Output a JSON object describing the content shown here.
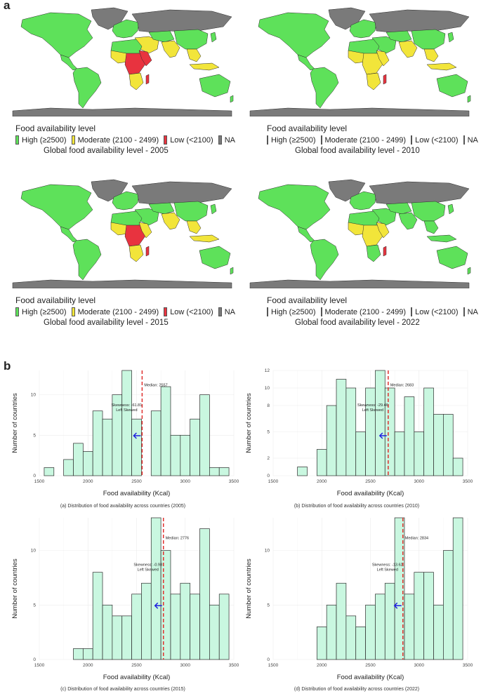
{
  "panel_a_label": "a",
  "panel_b_label": "b",
  "colors": {
    "high": "#5EE15A",
    "moderate": "#F2E53A",
    "low": "#E8333F",
    "na": "#7A7A7A",
    "ocean": "#ffffff",
    "bar_fill": "#C9F7E0",
    "bar_stroke": "#2b2b2b",
    "median_line": "#E0302E",
    "arrow": "#2020E0"
  },
  "maps": [
    {
      "legend_title": "Food availability level",
      "legend_items": [
        {
          "key": "high",
          "label": "High (≥2500)"
        },
        {
          "key": "moderate",
          "label": "Moderate (2100 - 2499)"
        },
        {
          "key": "low",
          "label": "Low (<2100)"
        },
        {
          "key": "na",
          "label": "NA"
        }
      ],
      "caption": "Global food availability level - 2005"
    },
    {
      "legend_title": "Food availability level",
      "legend_items": [
        {
          "key": "high",
          "label": "High (≥2500)"
        },
        {
          "key": "moderate",
          "label": "Moderate (2100 - 2499)"
        },
        {
          "key": "low",
          "label": "Low (<2100)"
        },
        {
          "key": "na",
          "label": "NA"
        }
      ],
      "caption": "Global food availability level - 2010"
    },
    {
      "legend_title": "Food availability level",
      "legend_items": [
        {
          "key": "high",
          "label": "High (≥2500)"
        },
        {
          "key": "moderate",
          "label": "Moderate (2100 - 2499)"
        },
        {
          "key": "low",
          "label": "Low (<2100)"
        },
        {
          "key": "na",
          "label": "NA"
        }
      ],
      "caption": "Global food availability level - 2015"
    },
    {
      "legend_title": "Food availability level",
      "legend_items": [
        {
          "key": "high",
          "label": "High (≥2500)"
        },
        {
          "key": "moderate",
          "label": "Moderate (2100 - 2499)"
        },
        {
          "key": "low",
          "label": "Low (<2100)"
        },
        {
          "key": "na",
          "label": "NA"
        }
      ],
      "caption": "Global food availability level - 2022"
    }
  ],
  "chart_data": [
    {
      "type": "bar",
      "xlabel": "Food availability (Kcal)",
      "ylabel": "Number of countries",
      "xlim": [
        1500,
        3500
      ],
      "ylim": [
        0,
        13
      ],
      "xticks": [
        "1500",
        "2000",
        "2500",
        "3000",
        "3500"
      ],
      "yticks": [
        "0",
        "5",
        "10"
      ],
      "bin_width": 100,
      "bin_starts": [
        1550,
        1650,
        1750,
        1850,
        1950,
        2050,
        2150,
        2250,
        2350,
        2450,
        2550,
        2650,
        2750,
        2850,
        2950,
        3050,
        3150,
        3250,
        3350
      ],
      "values": [
        1,
        0,
        2,
        4,
        3,
        8,
        7,
        10,
        13,
        7,
        0,
        8,
        11,
        5,
        5,
        7,
        10,
        1,
        1
      ],
      "median": 2557,
      "median_label": "Median: 2557",
      "skew_label": "Skewness: -61.81",
      "skew_type": "Left Skewed",
      "caption": "(a) Distribution of food availability across countries (2005)"
    },
    {
      "type": "bar",
      "xlabel": "Food availability (Kcal)",
      "ylabel": "Number of countries",
      "xlim": [
        1500,
        3500
      ],
      "ylim": [
        0,
        12
      ],
      "xticks": [
        "1500",
        "2000",
        "2500",
        "3000",
        "3500"
      ],
      "yticks": [
        "0",
        "2",
        "5",
        "8",
        "10",
        "12"
      ],
      "bin_width": 100,
      "bin_starts": [
        1550,
        1650,
        1750,
        1850,
        1950,
        2050,
        2150,
        2250,
        2350,
        2450,
        2550,
        2650,
        2750,
        2850,
        2950,
        3050,
        3150,
        3250,
        3350
      ],
      "values": [
        0,
        0,
        1,
        0,
        3,
        8,
        11,
        10,
        5,
        10,
        12,
        10,
        5,
        9,
        5,
        10,
        7,
        7,
        2
      ],
      "median": 2683,
      "median_label": "Median: 2683",
      "skew_label": "Skewness: -29.46",
      "skew_type": "Left Skewed",
      "caption": "(b) Distribution of food availability across countries (2010)"
    },
    {
      "type": "bar",
      "xlabel": "Food availability (Kcal)",
      "ylabel": "Number of countries",
      "xlim": [
        1500,
        3500
      ],
      "ylim": [
        0,
        13
      ],
      "xticks": [
        "1500",
        "2000",
        "2500",
        "3000",
        "3500"
      ],
      "yticks": [
        "0",
        "5",
        "10"
      ],
      "bin_width": 100,
      "bin_starts": [
        1550,
        1650,
        1750,
        1850,
        1950,
        2050,
        2150,
        2250,
        2350,
        2450,
        2550,
        2650,
        2750,
        2850,
        2950,
        3050,
        3150,
        3250,
        3350
      ],
      "values": [
        0,
        0,
        0,
        1,
        1,
        8,
        5,
        4,
        4,
        6,
        7,
        13,
        10,
        6,
        7,
        6,
        12,
        5,
        6
      ],
      "median": 2776,
      "median_label": "Median: 2776",
      "skew_label": "Skewness: -0.98",
      "skew_type": "Left Skewed",
      "caption": "(c) Distribution of food availability across countries (2015)"
    },
    {
      "type": "bar",
      "xlabel": "Food availability (Kcal)",
      "ylabel": "Number of countries",
      "xlim": [
        1500,
        3500
      ],
      "ylim": [
        0,
        13
      ],
      "xticks": [
        "1500",
        "2000",
        "2500",
        "3000",
        "3500"
      ],
      "yticks": [
        "0",
        "5",
        "10"
      ],
      "bin_width": 100,
      "bin_starts": [
        1550,
        1650,
        1750,
        1850,
        1950,
        2050,
        2150,
        2250,
        2350,
        2450,
        2550,
        2650,
        2750,
        2850,
        2950,
        3050,
        3150,
        3250,
        3350
      ],
      "values": [
        0,
        0,
        0,
        0,
        3,
        5,
        7,
        4,
        3,
        5,
        6,
        7,
        13,
        6,
        8,
        8,
        5,
        10,
        13
      ],
      "median": 2834,
      "median_label": "Median: 2834",
      "skew_label": "Skewness: -13.62",
      "skew_type": "Left Skewed",
      "caption": "(d) Distribution of food availability across countries (2022)"
    }
  ]
}
